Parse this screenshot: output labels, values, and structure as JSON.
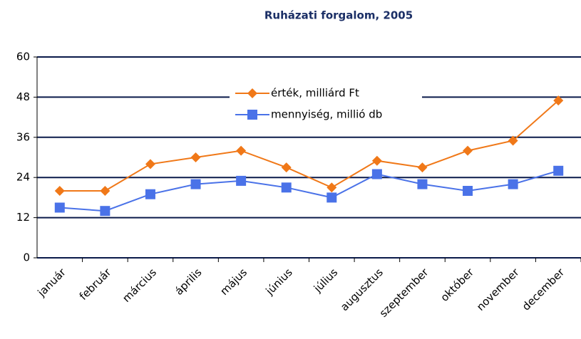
{
  "chart_data": {
    "type": "line",
    "title": "Ruházati forgalom, 2005",
    "categories": [
      "január",
      "február",
      "március",
      "április",
      "május",
      "június",
      "július",
      "augusztus",
      "szeptember",
      "október",
      "november",
      "december"
    ],
    "series": [
      {
        "name": "érték, milliárd Ft",
        "color": "#f07818",
        "marker": "diamond",
        "values": [
          20,
          20,
          28,
          30,
          32,
          27,
          21,
          29,
          27,
          32,
          35,
          47
        ]
      },
      {
        "name": "mennyiség, millió db",
        "color": "#4a72e8",
        "marker": "square",
        "values": [
          15,
          14,
          19,
          22,
          23,
          21,
          18,
          25,
          22,
          20,
          22,
          26
        ]
      }
    ],
    "ylim": [
      0,
      60
    ],
    "yticks": [
      0,
      12,
      24,
      36,
      48,
      60
    ],
    "grid": true
  }
}
